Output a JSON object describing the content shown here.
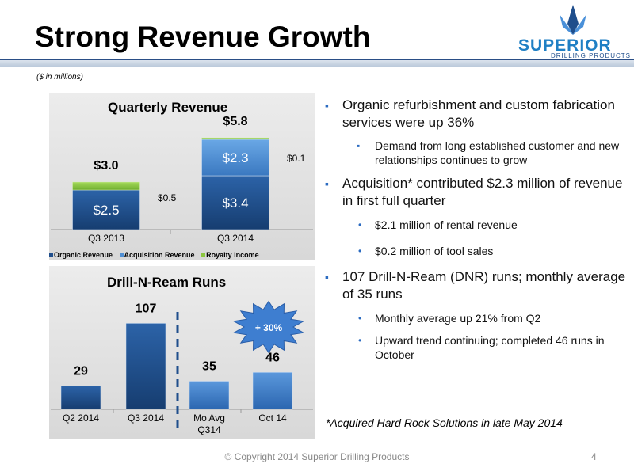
{
  "slide": {
    "title": "Strong Revenue Growth",
    "units_note": "($ in millions)",
    "footer": "© Copyright 2014 Superior Drilling Products",
    "page_number": "4",
    "logo": {
      "word": "SUPERIOR",
      "sub": "DRILLING PRODUCTS"
    }
  },
  "colors": {
    "organic": "#1f4e8c",
    "acquisition": "#4f8fd4",
    "royalty": "#8cc63f",
    "dnr_bar": "#3f7dc9",
    "bullet": "#2b6bc1",
    "dash": "#1f4e8c"
  },
  "chart_data": [
    {
      "type": "bar",
      "stacked": true,
      "title": "Quarterly Revenue",
      "categories": [
        "Q3 2013",
        "Q3 2014"
      ],
      "series": [
        {
          "name": "Organic Revenue",
          "values": [
            2.5,
            3.4
          ],
          "labels": [
            "$2.5",
            "$3.4"
          ]
        },
        {
          "name": "Acquisition Revenue",
          "values": [
            0,
            2.3
          ],
          "labels": [
            "",
            "$2.3"
          ]
        },
        {
          "name": "Royalty Income",
          "values": [
            0.5,
            0.1
          ],
          "labels": [
            "$0.5",
            "$0.1"
          ]
        }
      ],
      "totals": [
        3.0,
        5.8
      ],
      "total_labels": [
        "$3.0",
        "$5.8"
      ],
      "ylim": [
        0,
        6
      ],
      "legend_position": "bottom"
    },
    {
      "type": "bar",
      "title": "Drill-N-Ream Runs",
      "categories": [
        "Q2 2014",
        "Q3 2014",
        "Mo Avg Q314",
        "Oct 14"
      ],
      "category_lines": [
        [
          "Q2 2014"
        ],
        [
          "Q3 2014"
        ],
        [
          "Mo Avg",
          "Q314"
        ],
        [
          "Oct 14"
        ]
      ],
      "values": [
        29,
        107,
        35,
        46
      ],
      "value_labels": [
        "29",
        "107",
        "35",
        "46"
      ],
      "ylim": [
        0,
        120
      ],
      "callout": "+ 30%"
    }
  ],
  "bullets": [
    {
      "text": "Organic refurbishment and custom fabrication services were up 36%",
      "subs": [
        "Demand from long established customer and new relationships continues to grow"
      ],
      "sub_style": "sq"
    },
    {
      "text": "Acquisition* contributed $2.3 million of revenue in first full quarter",
      "subs": [
        "$2.1 million of rental revenue",
        "$0.2 million of tool sales"
      ],
      "sub_style": "dot"
    },
    {
      "text": "107 Drill-N-Ream (DNR) runs; monthly average of 35 runs",
      "subs": [
        "Monthly average up 21% from Q2",
        "Upward trend continuing; completed 46 runs in October"
      ],
      "sub_style": "dot"
    }
  ],
  "footnote": "*Acquired Hard Rock Solutions in late May 2014"
}
